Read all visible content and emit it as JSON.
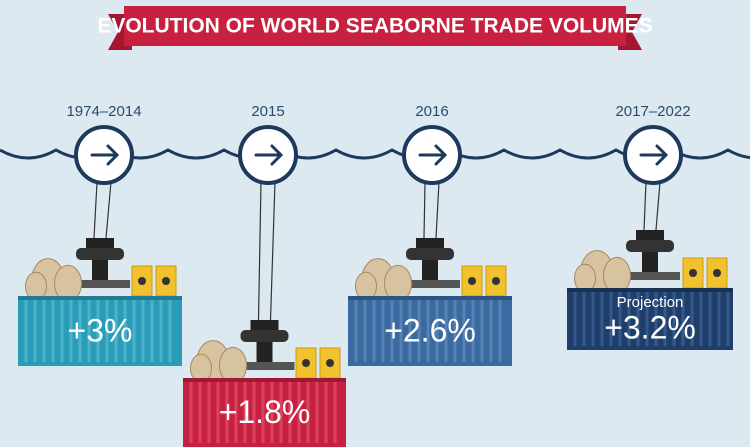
{
  "title": "EVOLUTION OF WORLD SEABORNE TRADE VOLUMES",
  "items": [
    {
      "period": "1974–2014",
      "value": "+3%"
    },
    {
      "period": "2015",
      "value": "+1.8%"
    },
    {
      "period": "2016",
      "value": "+2.6%"
    },
    {
      "period": "2017–2022",
      "value": "+3.2%",
      "note": "Projection"
    }
  ]
}
